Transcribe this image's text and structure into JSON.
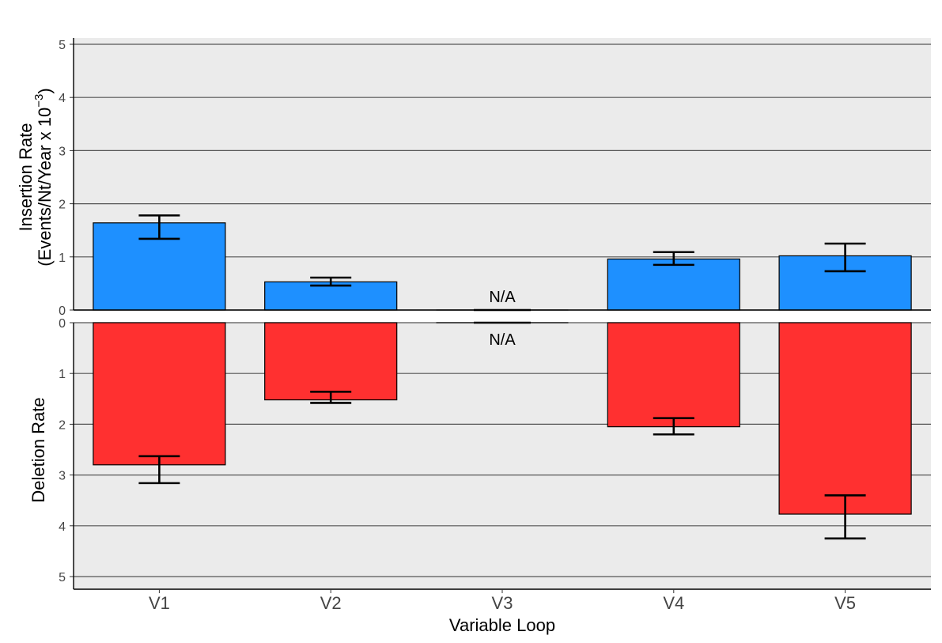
{
  "chart_data": {
    "type": "bar",
    "categories": [
      "V1",
      "V2",
      "V3",
      "V4",
      "V5"
    ],
    "xlabel": "Variable Loop",
    "top_panel": {
      "ylabel_line1": "Insertion Rate",
      "ylabel_line2": "(Events/Nt/Year x  10",
      "ylabel_exponent": "−3",
      "ylabel_close": ")",
      "ylim": [
        0,
        5
      ],
      "ticks": [
        "0",
        "1",
        "2",
        "3",
        "4",
        "5"
      ],
      "color": "#1E90FF",
      "values": [
        1.64,
        0.53,
        0,
        0.96,
        1.02
      ],
      "err_low": [
        1.34,
        0.46,
        null,
        0.85,
        0.73
      ],
      "err_high": [
        1.78,
        0.61,
        null,
        1.09,
        1.25
      ],
      "na_label": "N/A"
    },
    "bottom_panel": {
      "ylabel": "Deletion Rate",
      "ylim": [
        0,
        5
      ],
      "ticks": [
        "0",
        "1",
        "2",
        "3",
        "4",
        "5"
      ],
      "color": "#FF3030",
      "values": [
        2.8,
        1.52,
        0,
        2.05,
        3.77
      ],
      "err_low": [
        2.63,
        1.36,
        null,
        1.88,
        3.4
      ],
      "err_high": [
        3.16,
        1.58,
        null,
        2.2,
        4.25
      ],
      "na_label": "N/A"
    },
    "grid": true,
    "panel_background": "#EBEBEB",
    "gridline_color": "#555555"
  }
}
